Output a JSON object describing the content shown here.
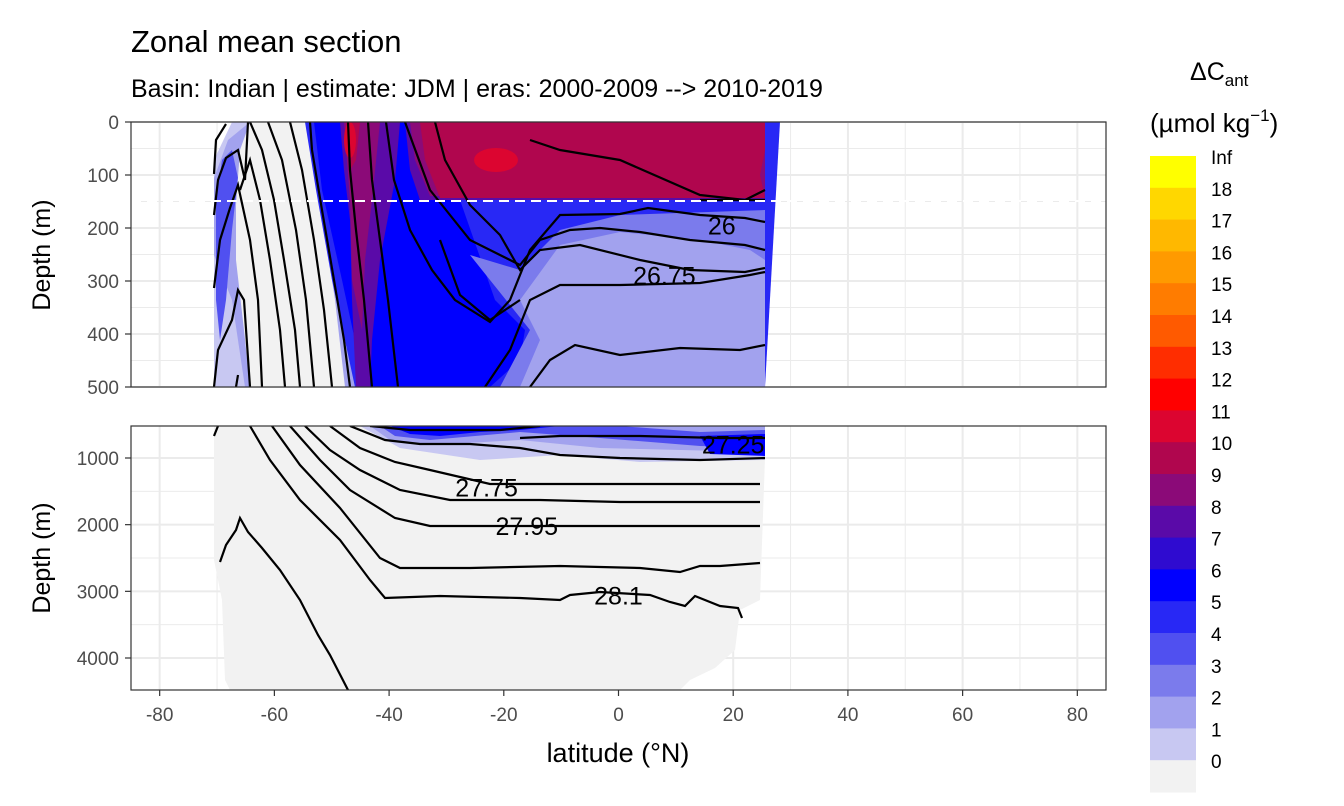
{
  "chart_data": {
    "type": "heatmap",
    "title": "Zonal mean section",
    "subtitle": "Basin: Indian | estimate: JDM  | eras: 2000-2009 --> 2010-2019",
    "xlabel": "latitude (°N)",
    "ylabel": "Depth (m)",
    "x_ticks": [
      "-80",
      "-60",
      "-40",
      "-20",
      "0",
      "20",
      "40",
      "60",
      "80"
    ],
    "xlim": [
      -85,
      85
    ],
    "grid": true,
    "panels": [
      {
        "ylim": [
          0,
          500
        ],
        "y_ticks": [
          "0",
          "100",
          "200",
          "300",
          "400",
          "500"
        ],
        "reversed": true
      },
      {
        "ylim": [
          500,
          4500
        ],
        "y_ticks": [
          "1000",
          "2000",
          "3000",
          "4000"
        ],
        "reversed": true
      }
    ],
    "reference_line_depth": 150,
    "legend": {
      "title_main": "ΔC",
      "title_sub": "ant",
      "unit": "(µmol kg",
      "unit_sup": "−1",
      "unit_close": ")",
      "placement": "right",
      "labels": [
        "Inf",
        "18",
        "17",
        "16",
        "15",
        "14",
        "13",
        "12",
        "11",
        "10",
        "9",
        "8",
        "7",
        "6",
        "5",
        "4",
        "3",
        "2",
        "1",
        "0"
      ],
      "colors": [
        "#ffff00",
        "#ffd700",
        "#ffb800",
        "#ff9a00",
        "#ff7c00",
        "#ff5a00",
        "#ff2d00",
        "#ff0000",
        "#dc0530",
        "#b0064e",
        "#8b0a78",
        "#5a0aa8",
        "#2f0bd0",
        "#0000ff",
        "#2828f5",
        "#5050f0",
        "#7b7bec",
        "#a2a2ee",
        "#c8c8f2",
        "#f2f2f2"
      ]
    },
    "contour_labels": [
      {
        "text": "26",
        "x": 18,
        "y": 195,
        "panel": 0
      },
      {
        "text": "26.75",
        "x": 8,
        "y": 290,
        "panel": 0
      },
      {
        "text": "27.25",
        "x": 20,
        "y": 800,
        "panel": 1
      },
      {
        "text": "27.75",
        "x": -23,
        "y": 1440,
        "panel": 1
      },
      {
        "text": "27.95",
        "x": -16,
        "y": 2020,
        "panel": 1
      },
      {
        "text": "28.1",
        "x": 0,
        "y": 3060,
        "panel": 1
      }
    ]
  }
}
